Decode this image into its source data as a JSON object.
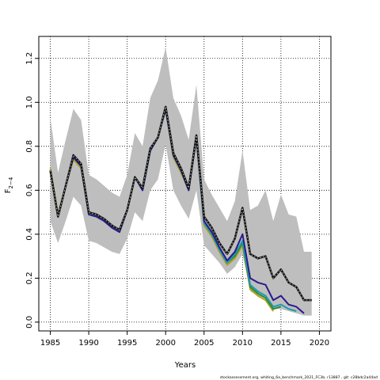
{
  "chart_data": {
    "type": "line",
    "xlabel": "Years",
    "ylabel_main": "F",
    "ylabel_sub": "2−4",
    "xlim": [
      1983.5,
      2021.5
    ],
    "ylim": [
      -0.04,
      1.3
    ],
    "xticks": [
      1985,
      1990,
      1995,
      2000,
      2005,
      2010,
      2015,
      2020
    ],
    "xtick_labels": [
      "1985",
      "1990",
      "1995",
      "2000",
      "2005",
      "2010",
      "2015",
      "2020"
    ],
    "yticks": [
      0.0,
      0.2,
      0.4,
      0.6,
      0.8,
      1.0,
      1.2
    ],
    "ytick_labels": [
      "0.0",
      "0.2",
      "0.4",
      "0.6",
      "0.8",
      "1.0",
      "1.2"
    ],
    "grid": true,
    "footnote": "stockassessment.org,  whiting_6a_benchmark_2021_FC3b,  r13887 ,  git:  c28bdc2a44ad",
    "band": {
      "color": "#bebebe",
      "x": [
        1985,
        1986,
        1987,
        1988,
        1989,
        1990,
        1991,
        1992,
        1993,
        1994,
        1995,
        1996,
        1997,
        1998,
        1999,
        2000,
        2001,
        2002,
        2003,
        2004,
        2005,
        2006,
        2007,
        2008,
        2009,
        2010,
        2011,
        2012,
        2013,
        2014,
        2015,
        2016,
        2017,
        2018,
        2019
      ],
      "upper": [
        0.93,
        0.68,
        0.83,
        0.97,
        0.92,
        0.67,
        0.65,
        0.62,
        0.59,
        0.57,
        0.67,
        0.86,
        0.8,
        1.02,
        1.1,
        1.25,
        1.02,
        0.94,
        0.83,
        1.08,
        0.65,
        0.58,
        0.52,
        0.46,
        0.55,
        0.78,
        0.51,
        0.53,
        0.6,
        0.46,
        0.58,
        0.49,
        0.48,
        0.32,
        0.32
      ],
      "lower": [
        0.46,
        0.36,
        0.46,
        0.57,
        0.53,
        0.37,
        0.36,
        0.34,
        0.32,
        0.31,
        0.38,
        0.5,
        0.46,
        0.6,
        0.65,
        0.81,
        0.6,
        0.53,
        0.47,
        0.6,
        0.35,
        0.31,
        0.27,
        0.22,
        0.25,
        0.31,
        0.14,
        0.12,
        0.11,
        0.06,
        0.06,
        0.05,
        0.04,
        0.03,
        0.03
      ]
    },
    "series": [
      {
        "color": "#111111",
        "dashed": true,
        "width": 2,
        "x": [
          1985,
          1986,
          1987,
          1988,
          1989,
          1990,
          1991,
          1992,
          1993,
          1994,
          1995,
          1996,
          1997,
          1998,
          1999,
          2000,
          2001,
          2002,
          2003,
          2004,
          2005,
          2006,
          2007,
          2008,
          2009,
          2010,
          2011,
          2012,
          2013,
          2014,
          2015,
          2016,
          2017,
          2018,
          2019
        ],
        "values": [
          0.69,
          0.48,
          0.62,
          0.76,
          0.72,
          0.5,
          0.49,
          0.47,
          0.44,
          0.42,
          0.51,
          0.66,
          0.61,
          0.79,
          0.84,
          0.98,
          0.77,
          0.7,
          0.61,
          0.85,
          0.48,
          0.43,
          0.36,
          0.31,
          0.38,
          0.52,
          0.31,
          0.29,
          0.3,
          0.2,
          0.24,
          0.18,
          0.16,
          0.1,
          0.1
        ]
      },
      {
        "color": "#2b1a8c",
        "dashed": false,
        "width": 2,
        "x": [
          1985,
          1986,
          1987,
          1988,
          1989,
          1990,
          1991,
          1992,
          1993,
          1994,
          1995,
          1996,
          1997,
          1998,
          1999,
          2000,
          2001,
          2002,
          2003,
          2004,
          2005,
          2006,
          2007,
          2008,
          2009,
          2010,
          2011,
          2012,
          2013,
          2014,
          2015,
          2016,
          2017,
          2018
        ],
        "values": [
          0.69,
          0.48,
          0.62,
          0.75,
          0.71,
          0.49,
          0.48,
          0.46,
          0.43,
          0.41,
          0.51,
          0.66,
          0.6,
          0.78,
          0.84,
          0.97,
          0.76,
          0.69,
          0.6,
          0.84,
          0.46,
          0.41,
          0.34,
          0.28,
          0.32,
          0.4,
          0.2,
          0.18,
          0.17,
          0.1,
          0.12,
          0.08,
          0.07,
          0.04
        ]
      },
      {
        "color": "#1a9bb5",
        "dashed": false,
        "width": 2,
        "x": [
          1985,
          1986,
          1987,
          1988,
          1989,
          1990,
          1991,
          1992,
          1993,
          1994,
          1995,
          1996,
          1997,
          1998,
          1999,
          2000,
          2001,
          2002,
          2003,
          2004,
          2005,
          2006,
          2007,
          2008,
          2009,
          2010,
          2011,
          2012,
          2013,
          2014,
          2015,
          2016,
          2017
        ],
        "values": [
          0.69,
          0.48,
          0.62,
          0.75,
          0.71,
          0.49,
          0.48,
          0.46,
          0.43,
          0.41,
          0.51,
          0.66,
          0.6,
          0.78,
          0.84,
          0.97,
          0.76,
          0.69,
          0.6,
          0.84,
          0.45,
          0.4,
          0.33,
          0.27,
          0.31,
          0.37,
          0.17,
          0.14,
          0.12,
          0.07,
          0.08,
          0.06,
          0.05
        ]
      },
      {
        "color": "#2e8b2e",
        "dashed": false,
        "width": 2,
        "x": [
          1985,
          1986,
          1987,
          1988,
          1989,
          1990,
          1991,
          1992,
          1993,
          1994,
          1995,
          1996,
          1997,
          1998,
          1999,
          2000,
          2001,
          2002,
          2003,
          2004,
          2005,
          2006,
          2007,
          2008,
          2009,
          2010,
          2011,
          2012,
          2013,
          2014,
          2015
        ],
        "values": [
          0.69,
          0.48,
          0.62,
          0.75,
          0.71,
          0.49,
          0.48,
          0.46,
          0.43,
          0.41,
          0.51,
          0.66,
          0.6,
          0.78,
          0.84,
          0.97,
          0.76,
          0.69,
          0.6,
          0.84,
          0.45,
          0.4,
          0.33,
          0.27,
          0.3,
          0.36,
          0.16,
          0.13,
          0.11,
          0.06,
          0.07
        ]
      },
      {
        "color": "#b5a020",
        "dashed": false,
        "width": 2,
        "x": [
          1985,
          1986,
          1987,
          1988,
          1989,
          1990,
          1991,
          1992,
          1993,
          1994,
          1995,
          1996,
          1997,
          1998,
          1999,
          2000,
          2001,
          2002,
          2003,
          2004,
          2005,
          2006,
          2007,
          2008,
          2009,
          2010,
          2011,
          2012,
          2013,
          2014
        ],
        "values": [
          0.7,
          0.49,
          0.62,
          0.74,
          0.7,
          0.49,
          0.48,
          0.46,
          0.43,
          0.41,
          0.51,
          0.66,
          0.61,
          0.78,
          0.84,
          0.97,
          0.75,
          0.68,
          0.6,
          0.85,
          0.44,
          0.39,
          0.32,
          0.26,
          0.29,
          0.35,
          0.15,
          0.12,
          0.1,
          0.05
        ]
      }
    ]
  }
}
